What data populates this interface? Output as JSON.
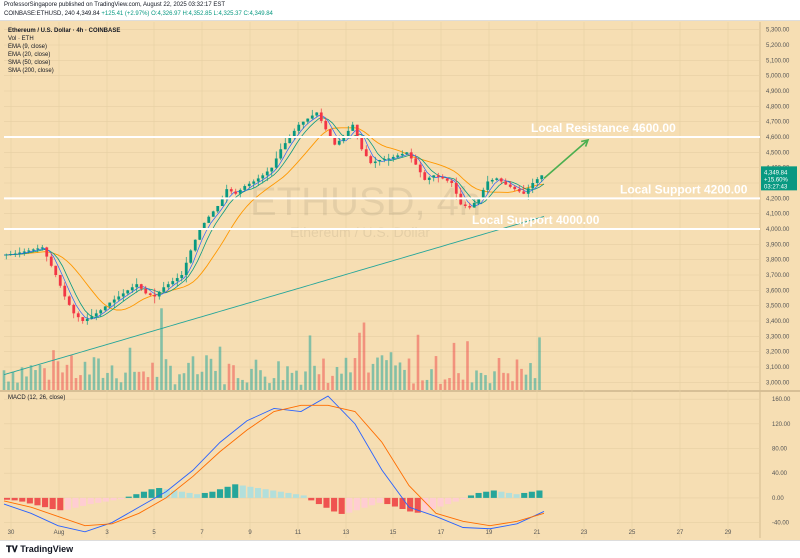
{
  "header": {
    "line1": "ProfessorSingapore published on TradingView.com, August 22, 2025 03:32:17 EST",
    "line2_symbol": "COINBASE:ETHUSD, 240",
    "line2_price": "4,349.84",
    "line2_change": "+125.41 (+2.97%)",
    "line2_ohlc": "O:4,326.97 H:4,352.85 L:4,325.37 C:4,349.84"
  },
  "legend": {
    "title": "Ethereum / U.S. Dollar · 4h · COINBASE",
    "vol": "Vol · ETH",
    "ema9": "EMA (9, close)",
    "ema20": "EMA (20, close)",
    "sma50": "SMA (50, close)",
    "sma200": "SMA (200, close)"
  },
  "watermark": {
    "symbol": "ETHUSD, 4h",
    "name": "Ethereum / U.S. Dollar"
  },
  "macd_title": "MACD (12, 26, close)",
  "price_tag": {
    "price": "4,349.84",
    "change": "+15.60%",
    "countdown": "03:27:43"
  },
  "footer": {
    "logo": "TradingView",
    "logo_icon": "tv-logo-icon"
  },
  "colors": {
    "background": "#f6deb3",
    "up": "#089981",
    "down": "#f23645",
    "ema9": "#2962ff",
    "ema20": "#089981",
    "sma50": "#ff9800",
    "sma200": "#26a69a",
    "annotation": "#ffffff",
    "arrow": "#4caf50"
  },
  "chart_data": [
    {
      "type": "candlestick",
      "title": "Ethereum / U.S. Dollar · 4h · COINBASE",
      "y_ticks": [
        5300,
        5200,
        5100,
        5000,
        4900,
        4800,
        4700,
        4600,
        4500,
        4400,
        4300,
        4200,
        4100,
        4000,
        3900,
        3800,
        3700,
        3600,
        3500,
        3400,
        3300,
        3200,
        3100,
        3000
      ],
      "y_tick_labels": [
        "5,300.00",
        "5,200.00",
        "5,100.00",
        "5,000.00",
        "4,900.00",
        "4,800.00",
        "4,700.00",
        "4,600.00",
        "4,500.00",
        "4,400.00",
        "4,300.00",
        "4,200.00",
        "4,100.00",
        "4,000.00",
        "3,900.00",
        "3,800.00",
        "3,700.00",
        "3,600.00",
        "3,500.00",
        "3,400.00",
        "3,300.00",
        "3,200.00",
        "3,100.00",
        "3,000.00"
      ],
      "ylim": [
        2950,
        5350
      ],
      "x_tick_labels": [
        "30",
        "Aug",
        "3",
        "5",
        "7",
        "9",
        "11",
        "13",
        "15",
        "17",
        "19",
        "21",
        "23",
        "25",
        "27",
        "29"
      ],
      "price_path": [
        [
          0,
          3830
        ],
        [
          3,
          3840
        ],
        [
          6,
          3860
        ],
        [
          9,
          3880
        ],
        [
          10,
          3820
        ],
        [
          12,
          3700
        ],
        [
          14,
          3560
        ],
        [
          16,
          3450
        ],
        [
          18,
          3400
        ],
        [
          20,
          3430
        ],
        [
          22,
          3470
        ],
        [
          24,
          3520
        ],
        [
          26,
          3560
        ],
        [
          28,
          3600
        ],
        [
          30,
          3640
        ],
        [
          32,
          3580
        ],
        [
          34,
          3560
        ],
        [
          36,
          3620
        ],
        [
          38,
          3660
        ],
        [
          40,
          3700
        ],
        [
          42,
          3860
        ],
        [
          44,
          4000
        ],
        [
          46,
          4080
        ],
        [
          48,
          4150
        ],
        [
          50,
          4260
        ],
        [
          52,
          4230
        ],
        [
          54,
          4280
        ],
        [
          56,
          4310
        ],
        [
          58,
          4350
        ],
        [
          60,
          4400
        ],
        [
          62,
          4520
        ],
        [
          64,
          4600
        ],
        [
          66,
          4680
        ],
        [
          68,
          4720
        ],
        [
          70,
          4760
        ],
        [
          72,
          4650
        ],
        [
          74,
          4550
        ],
        [
          76,
          4600
        ],
        [
          78,
          4680
        ],
        [
          80,
          4520
        ],
        [
          82,
          4430
        ],
        [
          84,
          4450
        ],
        [
          86,
          4460
        ],
        [
          88,
          4480
        ],
        [
          90,
          4500
        ],
        [
          92,
          4420
        ],
        [
          94,
          4320
        ],
        [
          96,
          4350
        ],
        [
          98,
          4330
        ],
        [
          100,
          4300
        ],
        [
          102,
          4160
        ],
        [
          104,
          4140
        ],
        [
          106,
          4200
        ],
        [
          108,
          4310
        ],
        [
          110,
          4330
        ],
        [
          112,
          4290
        ],
        [
          114,
          4260
        ],
        [
          116,
          4230
        ],
        [
          118,
          4300
        ],
        [
          120,
          4350
        ]
      ],
      "horizontal_levels": [
        {
          "price": 4600,
          "label": "Local Resistance 4600.00"
        },
        {
          "price": 4200,
          "label": "Local Support 4200.00"
        },
        {
          "price": 4000,
          "label": "Local Support 4000.00"
        }
      ],
      "projection": {
        "from": 4330,
        "to": 4600
      }
    },
    {
      "type": "bar",
      "title": "MACD (12, 26, close)",
      "y_ticks": [
        160,
        120,
        80,
        40,
        0,
        -40
      ],
      "y_tick_labels": [
        "160.00",
        "120.00",
        "80.00",
        "40.00",
        "0.00",
        "-40.00"
      ],
      "ylim": [
        -65,
        170
      ],
      "histogram": [
        -3,
        -4,
        -6,
        -9,
        -12,
        -15,
        -18,
        -20,
        -19,
        -16,
        -13,
        -10,
        -8,
        -6,
        -4,
        -2,
        2,
        6,
        10,
        14,
        16,
        14,
        12,
        10,
        8,
        6,
        8,
        10,
        14,
        18,
        22,
        20,
        18,
        16,
        14,
        12,
        10,
        8,
        6,
        4,
        -4,
        -10,
        -16,
        -22,
        -26,
        -24,
        -20,
        -16,
        -12,
        -8,
        -10,
        -14,
        -18,
        -22,
        -24,
        -22,
        -18,
        -14,
        -10,
        -6,
        -2,
        4,
        8,
        10,
        12,
        10,
        8,
        6,
        8,
        10,
        12
      ],
      "macd_line": [
        -10,
        -25,
        -45,
        -55,
        -40,
        -15,
        10,
        45,
        90,
        125,
        145,
        140,
        165,
        120,
        45,
        -15,
        -30,
        -48,
        -50,
        -42,
        -22
      ],
      "signal_line": [
        -5,
        -15,
        -30,
        -45,
        -42,
        -25,
        0,
        35,
        75,
        110,
        140,
        150,
        150,
        140,
        90,
        20,
        -25,
        -38,
        -45,
        -38,
        -25
      ]
    }
  ]
}
